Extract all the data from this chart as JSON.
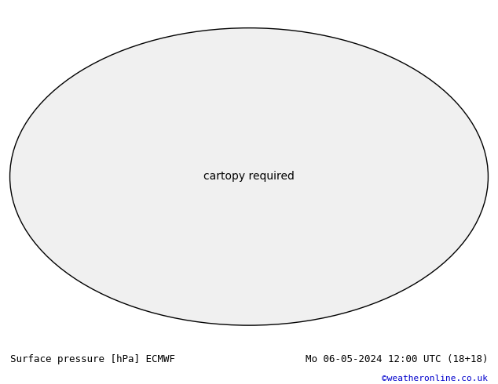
{
  "title_left": "Surface pressure [hPa] ECMWF",
  "title_right": "Mo 06-05-2024 12:00 UTC (18+18)",
  "copyright": "©weatheronline.co.uk",
  "bg_color": "#ffffff",
  "footer_color": "#000000",
  "copyright_color": "#0000cc",
  "land_color": "#c8e8c0",
  "ocean_color": "#ffffff",
  "contour_blue_color": "#0000ff",
  "contour_red_color": "#ff0000",
  "contour_black_color": "#000000",
  "map_border_color": "#808080",
  "fig_width": 6.34,
  "fig_height": 4.9,
  "dpi": 100
}
